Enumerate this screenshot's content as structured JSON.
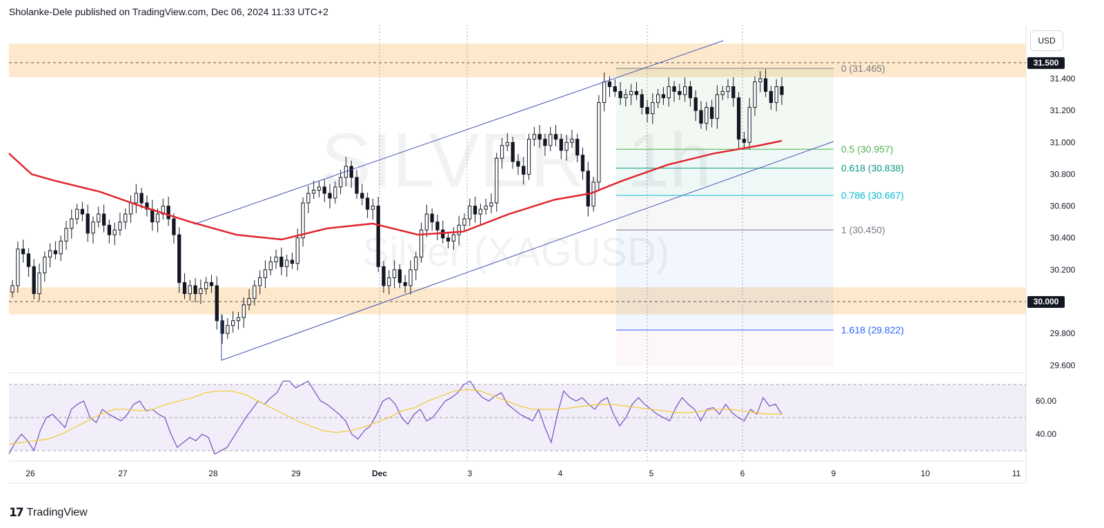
{
  "header": {
    "published": "Sholanke-Dele published on TradingView.com, Dec 06, 2024 11:33 UTC+2"
  },
  "watermark": {
    "symbol": "SILVER, 1h",
    "name": "Silver (XAGUSD)"
  },
  "currency_button": "USD",
  "brand": {
    "name": "TradingView",
    "logo": "17"
  },
  "colors": {
    "ma_line": "#e0262d",
    "channel": "#3f51b5",
    "zone": "#fde4c2",
    "rsi_band": "#7e57c2",
    "rsi_line": "#7e57c2",
    "rsi_ma": "#f2cc3c",
    "candle": "#131722"
  },
  "chart_data": [
    {
      "type": "candlestick",
      "symbol": "SILVER",
      "interval": "1h",
      "y_axis": {
        "ticks": [
          "31.400",
          "31.200",
          "31.000",
          "30.800",
          "30.600",
          "30.400",
          "30.200",
          "29.800",
          "29.600"
        ],
        "ylim": [
          29.6,
          31.7
        ]
      },
      "x_axis": {
        "ticks": [
          "26",
          "27",
          "28",
          "29",
          "Dec",
          "3",
          "4",
          "5",
          "6",
          "9",
          "10",
          "11"
        ]
      },
      "price_badges": [
        {
          "label": "31.500",
          "value": 31.5
        },
        {
          "label": "30.000",
          "value": 30.0
        }
      ],
      "horizontal_levels": [
        31.5,
        30.0
      ],
      "supply_zone": [
        31.41,
        31.62
      ],
      "demand_zone": [
        29.92,
        30.09
      ],
      "fibonacci": [
        {
          "label": "0 (31.465)",
          "level": 0,
          "price": 31.465,
          "color": "#787b86"
        },
        {
          "label": "0.5 (30.957)",
          "level": 0.5,
          "price": 30.957,
          "color": "#4caf50"
        },
        {
          "label": "0.618 (30.838)",
          "level": 0.618,
          "price": 30.838,
          "color": "#089981"
        },
        {
          "label": "0.786 (30.667)",
          "level": 0.786,
          "price": 30.667,
          "color": "#00bcd4"
        },
        {
          "label": "1 (30.450)",
          "level": 1,
          "price": 30.45,
          "color": "#787b86"
        },
        {
          "label": "1.618 (29.822)",
          "level": 1.618,
          "price": 29.822,
          "color": "#2962ff"
        }
      ],
      "ma_series": [
        {
          "x": 0,
          "y": 30.93
        },
        {
          "x": 5,
          "y": 30.8
        },
        {
          "x": 10,
          "y": 30.76
        },
        {
          "x": 20,
          "y": 30.69
        },
        {
          "x": 30,
          "y": 30.59
        },
        {
          "x": 40,
          "y": 30.5
        },
        {
          "x": 50,
          "y": 30.42
        },
        {
          "x": 60,
          "y": 30.39
        },
        {
          "x": 70,
          "y": 30.46
        },
        {
          "x": 80,
          "y": 30.49
        },
        {
          "x": 90,
          "y": 30.42
        },
        {
          "x": 100,
          "y": 30.44
        },
        {
          "x": 110,
          "y": 30.55
        },
        {
          "x": 120,
          "y": 30.64
        },
        {
          "x": 128,
          "y": 30.68
        },
        {
          "x": 135,
          "y": 30.76
        },
        {
          "x": 145,
          "y": 30.86
        },
        {
          "x": 155,
          "y": 30.93
        },
        {
          "x": 165,
          "y": 30.98
        },
        {
          "x": 170,
          "y": 31.01
        }
      ],
      "candles_close": [
        30.1,
        30.33,
        30.3,
        30.22,
        30.05,
        30.18,
        30.28,
        30.32,
        30.3,
        30.38,
        30.46,
        30.52,
        30.58,
        30.55,
        30.43,
        30.5,
        30.55,
        30.48,
        30.42,
        30.45,
        30.5,
        30.55,
        30.62,
        30.68,
        30.62,
        30.58,
        30.5,
        30.55,
        30.6,
        30.52,
        30.42,
        30.12,
        30.05,
        30.1,
        30.05,
        30.08,
        30.12,
        30.1,
        29.88,
        29.8,
        29.85,
        29.88,
        29.9,
        29.98,
        30.02,
        30.1,
        30.15,
        30.2,
        30.25,
        30.28,
        30.22,
        30.26,
        30.24,
        30.4,
        30.62,
        30.68,
        30.7,
        30.72,
        30.68,
        30.65,
        30.72,
        30.78,
        30.85,
        30.78,
        30.68,
        30.65,
        30.58,
        30.6,
        30.22,
        30.1,
        30.15,
        30.2,
        30.12,
        30.1,
        30.2,
        30.28,
        30.45,
        30.55,
        30.5,
        30.45,
        30.4,
        30.38,
        30.42,
        30.48,
        30.52,
        30.6,
        30.55,
        30.58,
        30.6,
        30.62,
        30.9,
        30.98,
        31.0,
        30.88,
        30.85,
        30.8,
        31.02,
        31.05,
        31.02,
        30.98,
        31.05,
        31.02,
        30.95,
        31.0,
        31.02,
        30.92,
        30.82,
        30.6,
        30.75,
        31.25,
        31.38,
        31.35,
        31.32,
        31.28,
        31.3,
        31.32,
        31.3,
        31.22,
        31.18,
        31.25,
        31.3,
        31.28,
        31.35,
        31.32,
        31.3,
        31.35,
        31.28,
        31.2,
        31.12,
        31.22,
        31.15,
        31.3,
        31.32,
        31.35,
        31.28,
        31.02,
        31.0,
        31.22,
        31.38,
        31.4,
        31.32,
        31.25,
        31.35,
        31.3
      ]
    },
    {
      "type": "line",
      "name": "RSI",
      "y_axis": {
        "ticks": [
          "60.00",
          "40.00"
        ],
        "ylim": [
          25,
          78
        ]
      },
      "levels": [
        70,
        50,
        30
      ],
      "rsi": [
        28,
        35,
        40,
        36,
        30,
        42,
        50,
        52,
        48,
        44,
        55,
        58,
        60,
        50,
        47,
        55,
        52,
        50,
        48,
        52,
        58,
        60,
        54,
        55,
        52,
        50,
        40,
        32,
        35,
        38,
        36,
        40,
        38,
        28,
        30,
        32,
        38,
        44,
        50,
        55,
        60,
        58,
        62,
        65,
        72,
        72,
        68,
        70,
        72,
        66,
        60,
        58,
        55,
        52,
        48,
        40,
        37,
        42,
        45,
        52,
        60,
        62,
        58,
        50,
        46,
        52,
        55,
        48,
        50,
        55,
        60,
        62,
        65,
        70,
        72,
        66,
        62,
        60,
        63,
        65,
        58,
        55,
        52,
        50,
        48,
        55,
        44,
        35,
        52,
        66,
        62,
        60,
        62,
        58,
        55,
        60,
        62,
        52,
        45,
        50,
        58,
        62,
        58,
        55,
        52,
        50,
        48,
        56,
        62,
        58,
        55,
        48,
        55,
        56,
        52,
        58,
        53,
        50,
        48,
        55,
        52,
        62,
        57,
        58,
        52
      ],
      "rsi_ma": [
        34,
        35,
        36,
        37,
        40,
        44,
        48,
        52,
        55,
        55,
        54,
        55,
        58,
        60,
        62,
        65,
        66,
        66,
        64,
        60,
        56,
        52,
        48,
        45,
        42,
        41,
        42,
        44,
        47,
        50,
        54,
        56,
        60,
        63,
        66,
        67,
        66,
        63,
        60,
        57,
        55,
        55,
        55,
        56,
        57,
        58,
        58,
        57,
        56,
        55,
        54,
        53,
        53,
        54,
        55,
        55,
        54,
        53,
        52,
        52
      ]
    }
  ]
}
